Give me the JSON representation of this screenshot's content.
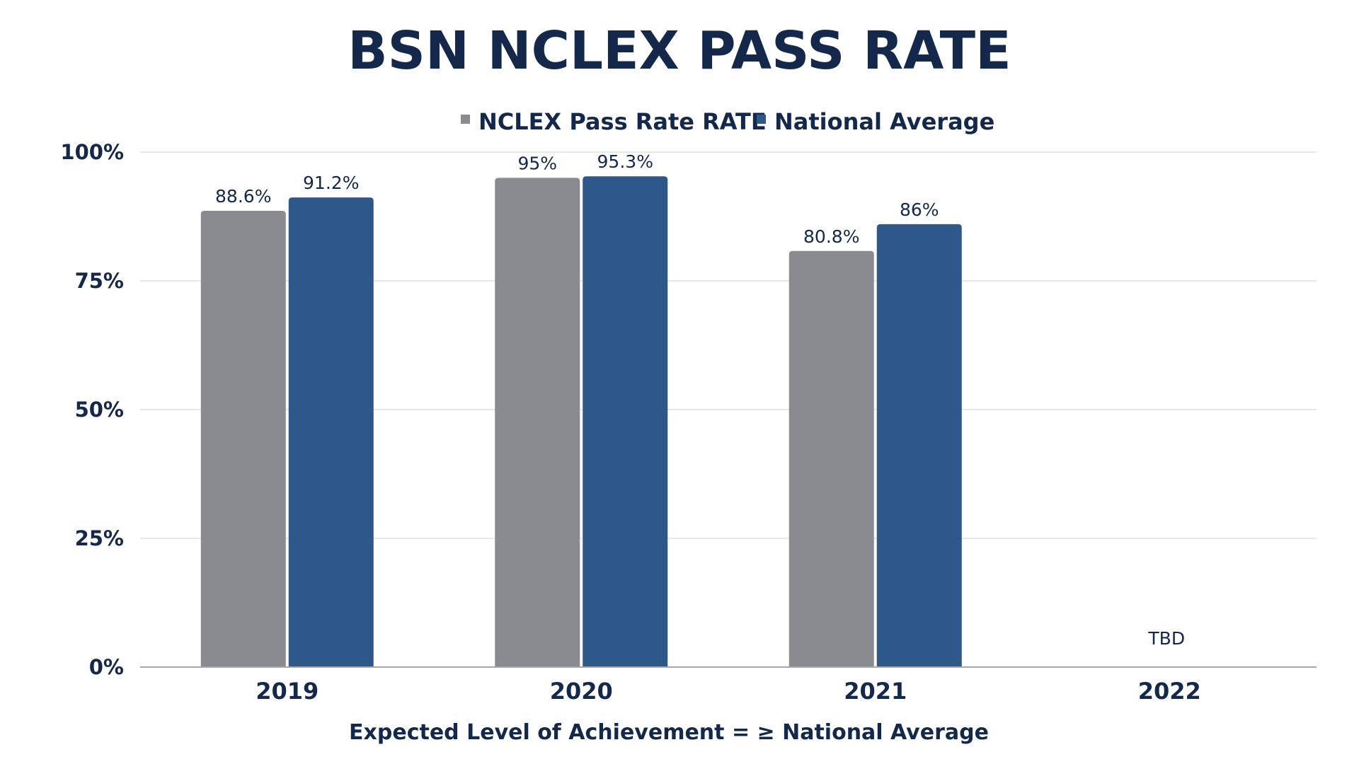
{
  "chart_data": {
    "type": "bar",
    "title": "BSN NCLEX PASS RATE",
    "categories": [
      "2019",
      "2020",
      "2021",
      "2022"
    ],
    "series": [
      {
        "name": "NCLEX Pass Rate RATE",
        "color": "#8a8b8f",
        "values": [
          88.6,
          95,
          80.8,
          null
        ],
        "labels": [
          "88.6%",
          "95%",
          "80.8%",
          ""
        ]
      },
      {
        "name": "National Average",
        "color": "#2e578a",
        "values": [
          91.2,
          95.3,
          86,
          null
        ],
        "labels": [
          "91.2%",
          "95.3%",
          "86%",
          ""
        ]
      }
    ],
    "ylim": [
      0,
      100
    ],
    "yticks": [
      0,
      25,
      50,
      75,
      100
    ],
    "ytick_labels": [
      "0%",
      "25%",
      "50%",
      "75%",
      "100%"
    ],
    "annotations": [
      {
        "category": "2022",
        "text": "TBD"
      }
    ],
    "grid": true,
    "legend": "top-center",
    "footer": "Expected Level of Achievement = ≥ National Average",
    "colors": {
      "text": "#14284b",
      "grid": "#d9d9d9",
      "axis": "#a6a6a6"
    }
  }
}
